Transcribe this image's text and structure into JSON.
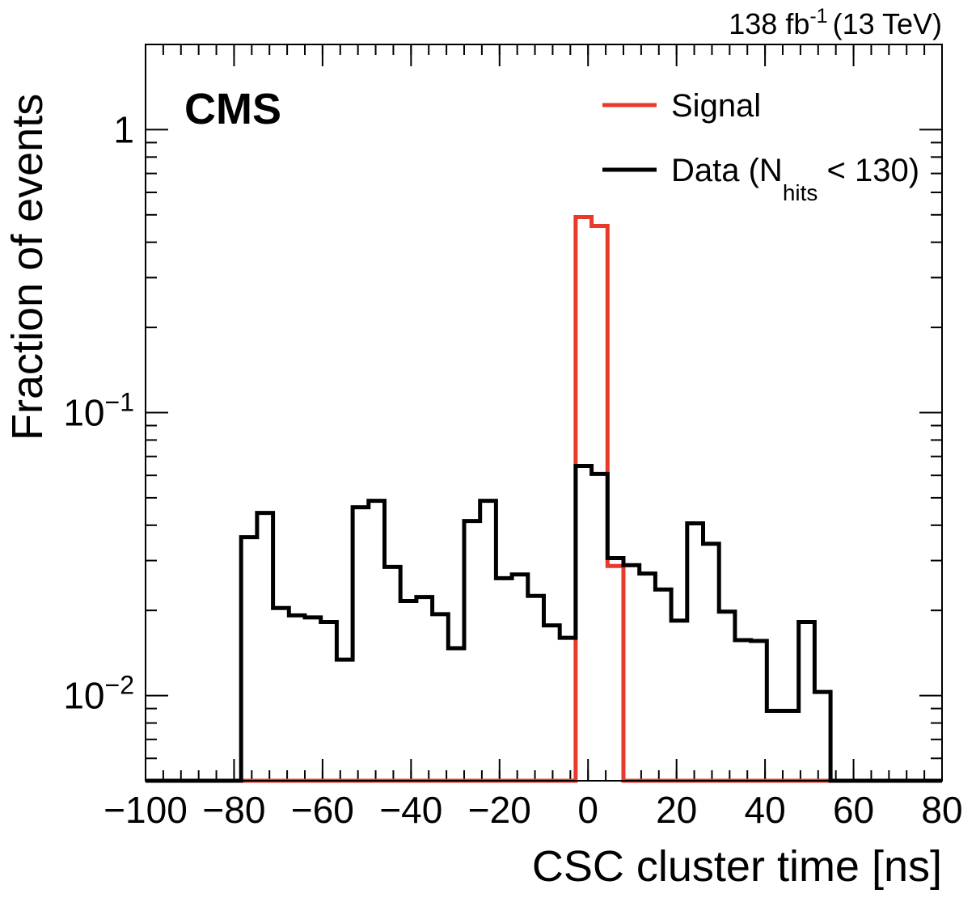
{
  "chart_data": {
    "type": "histogram",
    "lumi": "138 fb",
    "lumi_exp": "-1",
    "energy": "(13 TeV)",
    "label": "CMS",
    "xlabel": "CSC cluster time [ns]",
    "ylabel": "Fraction of events",
    "bins": [
      -78.4,
      -74.8,
      -71.2,
      -67.6,
      -64,
      -60.4,
      -56.8,
      -53.2,
      -49.6,
      -46,
      -42.4,
      -38.8,
      -35.2,
      -31.6,
      -28,
      -24.4,
      -20.8,
      -17.2,
      -13.6,
      -10,
      -6.4,
      -2.8,
      0.8,
      4.4,
      8,
      11.6,
      15.2,
      18.8,
      22.4,
      26,
      29.6,
      33.2,
      36.8,
      40.4,
      44,
      47.6,
      51.2,
      54.8
    ],
    "series": [
      {
        "name": "Signal",
        "color": "#e8392a",
        "values": [
          0,
          0,
          0,
          0,
          0,
          0,
          0,
          0,
          0,
          0,
          0,
          0,
          0,
          0,
          0,
          0,
          0,
          0,
          0,
          0,
          0,
          0.491,
          0.457,
          0.0287,
          0,
          0,
          0,
          0,
          0,
          0,
          0,
          0,
          0,
          0,
          0,
          0,
          0
        ]
      },
      {
        "name": "Data (N",
        "name_sub": "hits",
        "name_rest": " < 130)",
        "color": "#000000",
        "values": [
          0.0363,
          0.0442,
          0.0204,
          0.0192,
          0.0189,
          0.0182,
          0.0134,
          0.0463,
          0.0488,
          0.0285,
          0.0216,
          0.0223,
          0.0194,
          0.0147,
          0.0414,
          0.0488,
          0.026,
          0.0268,
          0.0225,
          0.0177,
          0.016,
          0.0648,
          0.0607,
          0.0306,
          0.0289,
          0.027,
          0.0237,
          0.0184,
          0.0406,
          0.0344,
          0.0198,
          0.0157,
          0.0156,
          0.00883,
          0.00883,
          0.0182,
          0.0103
        ]
      }
    ],
    "xlim": [
      -100,
      80
    ],
    "xticks": [
      {
        "value": -100,
        "label": "−100"
      },
      {
        "value": -80,
        "label": "−80"
      },
      {
        "value": -60,
        "label": "−60"
      },
      {
        "value": -40,
        "label": "−40"
      },
      {
        "value": -20,
        "label": "−20"
      },
      0,
      20,
      40,
      60,
      80
    ],
    "ylim": [
      0.005,
      2
    ],
    "log_y": true,
    "yticks": [
      {
        "value": 0.01,
        "label": "10",
        "exponent": "−2"
      },
      {
        "value": 0.1,
        "label": "10",
        "exponent": "−1"
      },
      1
    ],
    "legend": "upper right"
  }
}
